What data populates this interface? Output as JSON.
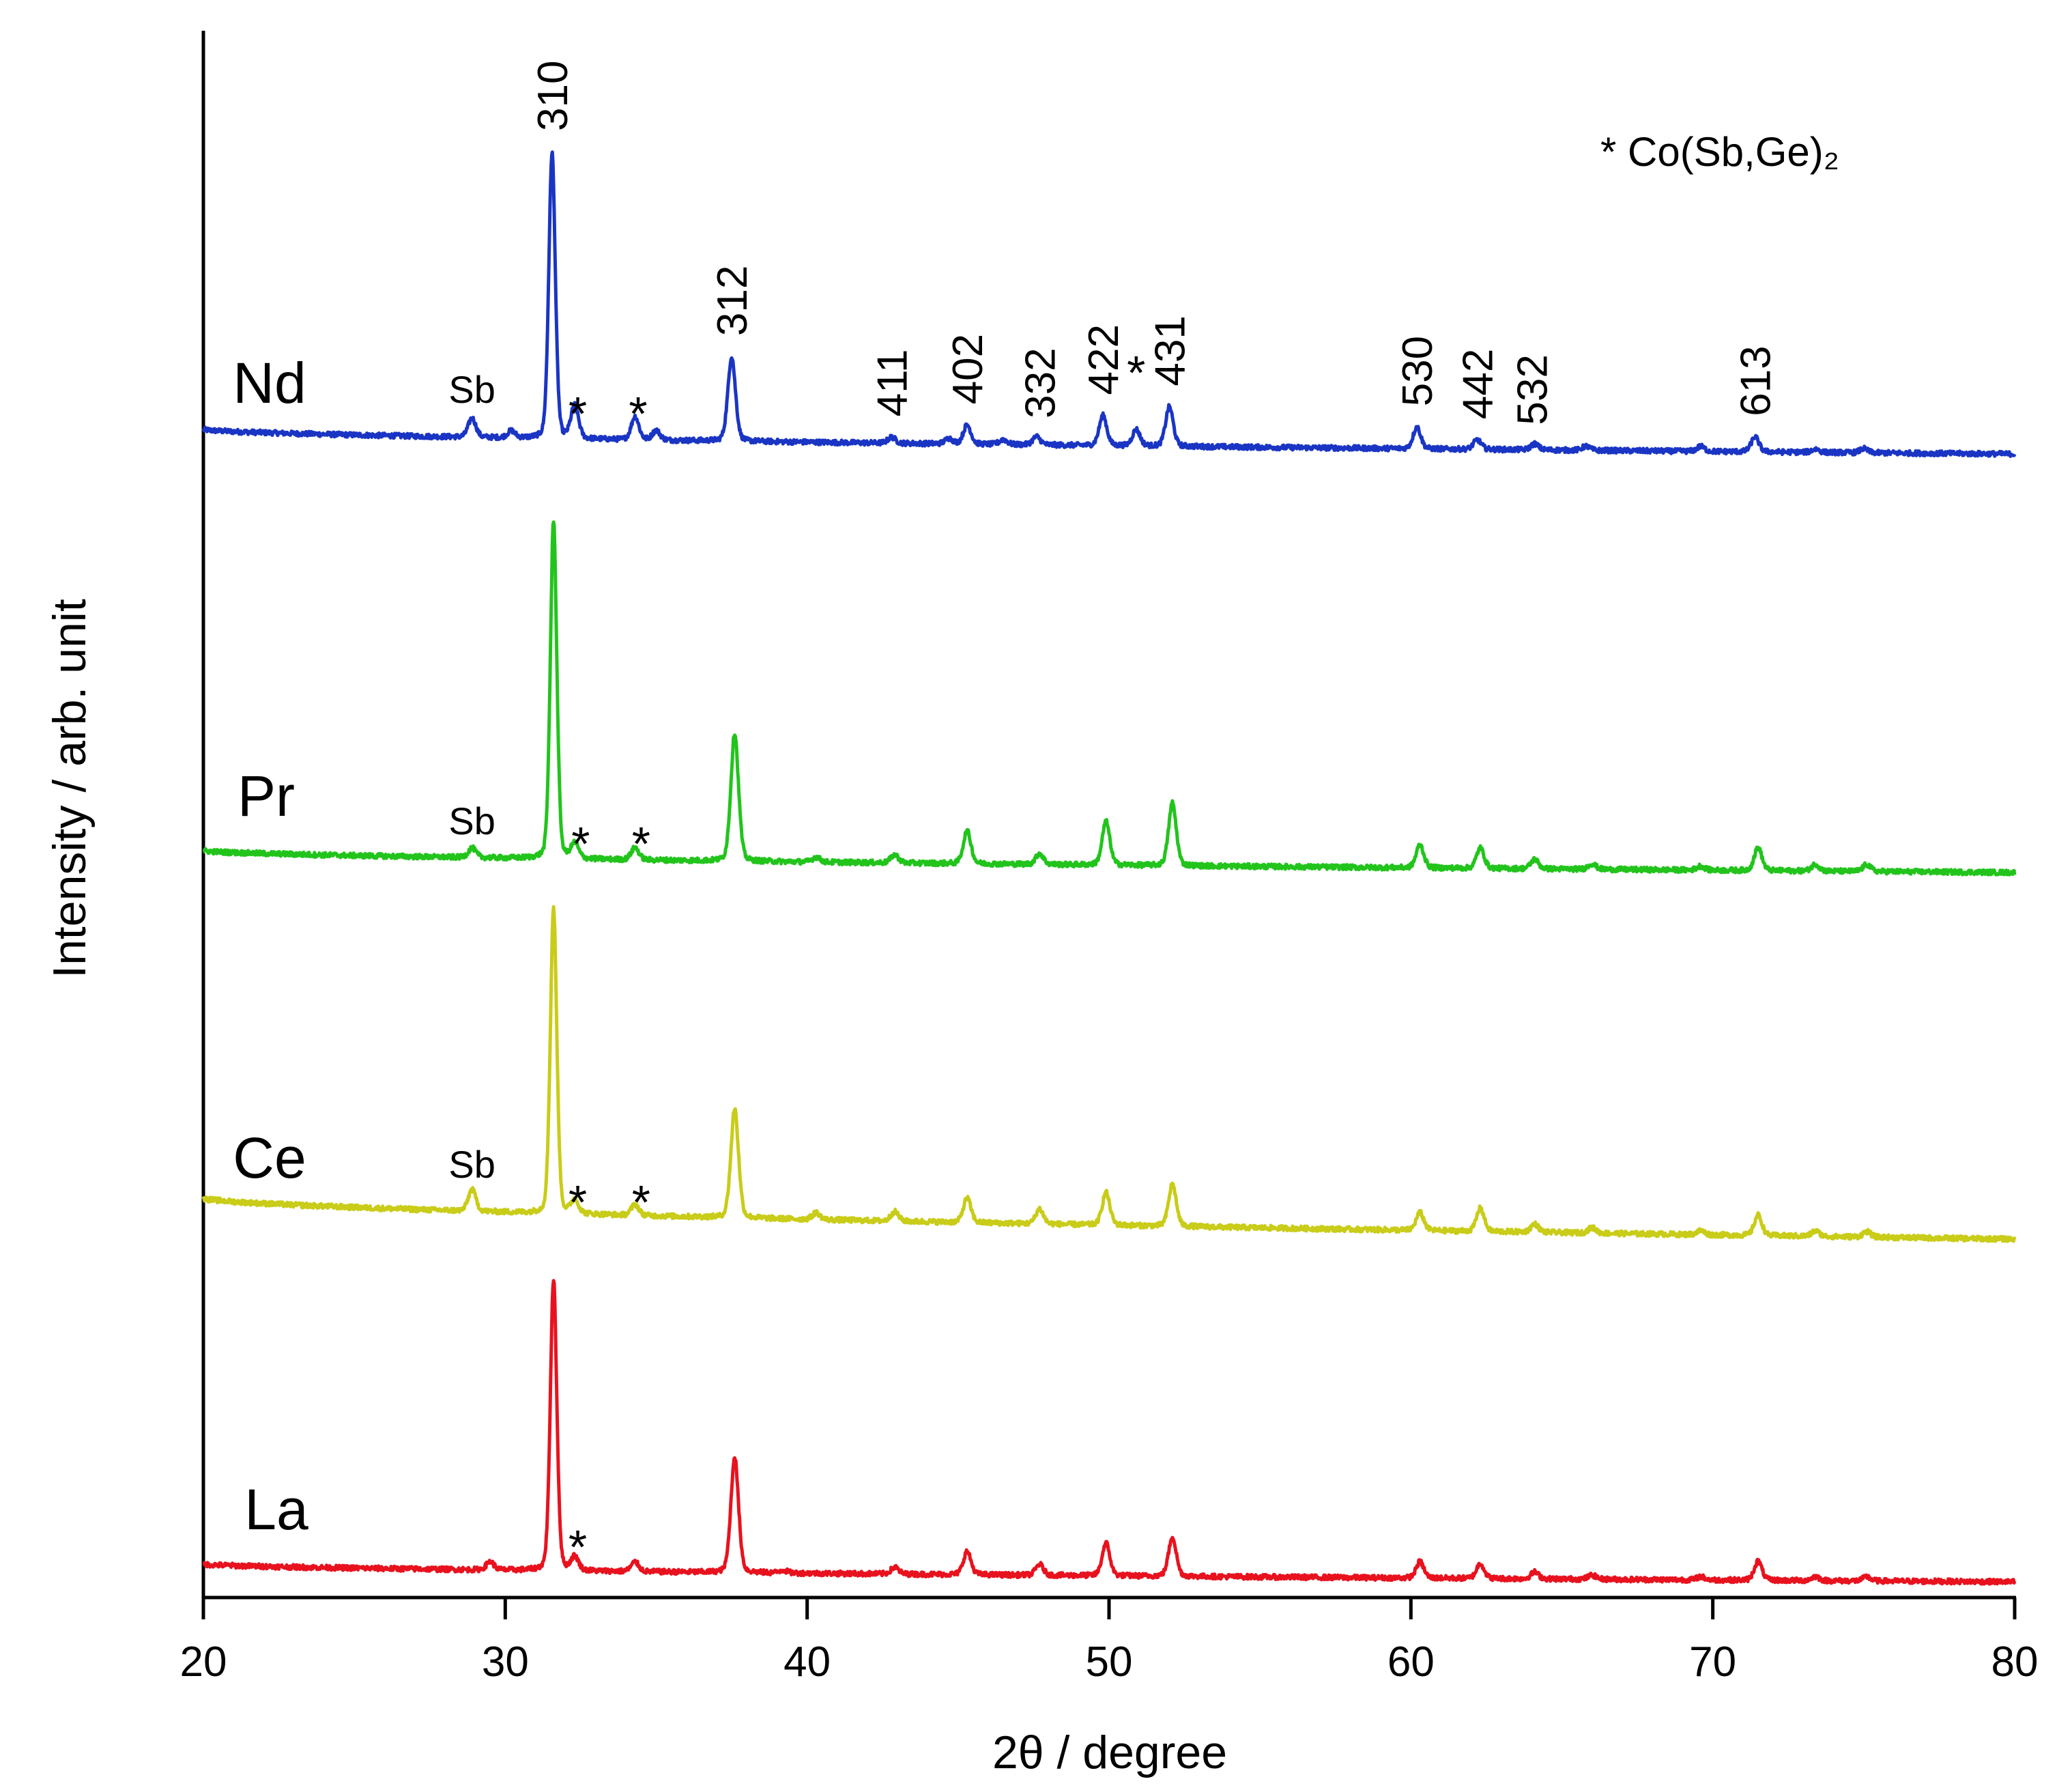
{
  "chart_data": {
    "type": "line",
    "xlabel": "2θ / degree",
    "ylabel": "Intensity / arb. unit",
    "xlim": [
      20,
      80
    ],
    "x_ticks": [
      "20",
      "30",
      "40",
      "50",
      "60",
      "70",
      "80"
    ],
    "y_ticks": "none",
    "note": "* Co(Sb,Ge)₂",
    "series": [
      {
        "name": "Nd",
        "color": "#1a35c4",
        "baseline_start": 0.9,
        "baseline_end": 0.0,
        "peaks": [
          [
            28.9,
            0.7
          ],
          [
            30.2,
            0.25
          ],
          [
            31.55,
            10.5
          ],
          [
            32.3,
            1.2
          ],
          [
            34.3,
            0.85
          ],
          [
            35.0,
            0.35
          ],
          [
            37.5,
            3.1
          ],
          [
            42.8,
            0.22
          ],
          [
            44.7,
            0.2
          ],
          [
            45.3,
            0.7
          ],
          [
            46.5,
            0.18
          ],
          [
            47.6,
            0.3
          ],
          [
            49.8,
            1.1
          ],
          [
            50.9,
            0.6
          ],
          [
            52.0,
            1.45
          ],
          [
            60.2,
            0.8
          ],
          [
            62.2,
            0.35
          ],
          [
            64.1,
            0.22
          ],
          [
            65.8,
            0.15
          ],
          [
            69.6,
            0.18
          ],
          [
            71.4,
            0.55
          ],
          [
            73.4,
            0.12
          ],
          [
            75.0,
            0.15
          ]
        ]
      },
      {
        "name": "Pr",
        "color": "#22c41c",
        "baseline_start": 0.8,
        "baseline_end": 0.0,
        "peaks": [
          [
            28.9,
            0.35
          ],
          [
            31.6,
            12.4
          ],
          [
            32.3,
            0.55
          ],
          [
            34.3,
            0.45
          ],
          [
            37.6,
            4.7
          ],
          [
            40.3,
            0.18
          ],
          [
            42.9,
            0.3
          ],
          [
            45.3,
            1.2
          ],
          [
            47.7,
            0.4
          ],
          [
            49.9,
            1.6
          ],
          [
            52.1,
            2.3
          ],
          [
            60.3,
            0.85
          ],
          [
            62.3,
            0.75
          ],
          [
            64.1,
            0.35
          ],
          [
            66.0,
            0.2
          ],
          [
            69.6,
            0.15
          ],
          [
            71.5,
            0.85
          ],
          [
            73.4,
            0.25
          ],
          [
            75.1,
            0.25
          ]
        ]
      },
      {
        "name": "Ce",
        "color": "#c9cc18",
        "baseline_start": 1.5,
        "baseline_end": 0.0,
        "peaks": [
          [
            28.9,
            0.8
          ],
          [
            31.6,
            11.2
          ],
          [
            32.3,
            0.5
          ],
          [
            34.3,
            0.4
          ],
          [
            37.6,
            4.0
          ],
          [
            40.3,
            0.25
          ],
          [
            42.9,
            0.35
          ],
          [
            45.3,
            0.9
          ],
          [
            47.7,
            0.55
          ],
          [
            49.9,
            1.2
          ],
          [
            52.1,
            1.55
          ],
          [
            60.3,
            0.65
          ],
          [
            62.3,
            0.85
          ],
          [
            64.1,
            0.3
          ],
          [
            66.0,
            0.2
          ],
          [
            69.6,
            0.15
          ],
          [
            71.5,
            0.75
          ],
          [
            73.4,
            0.2
          ],
          [
            75.1,
            0.2
          ]
        ]
      },
      {
        "name": "La",
        "color": "#e8121e",
        "baseline_start": 0.65,
        "baseline_end": 0.0,
        "peaks": [
          [
            29.5,
            0.3
          ],
          [
            31.6,
            10.7
          ],
          [
            32.3,
            0.5
          ],
          [
            34.3,
            0.35
          ],
          [
            37.6,
            4.25
          ],
          [
            39.2,
            0.1
          ],
          [
            42.9,
            0.25
          ],
          [
            45.3,
            0.85
          ],
          [
            47.7,
            0.4
          ],
          [
            49.9,
            1.2
          ],
          [
            52.1,
            1.45
          ],
          [
            60.3,
            0.6
          ],
          [
            62.3,
            0.55
          ],
          [
            64.1,
            0.25
          ],
          [
            66.0,
            0.15
          ],
          [
            69.6,
            0.12
          ],
          [
            71.5,
            0.7
          ],
          [
            73.4,
            0.15
          ],
          [
            75.1,
            0.15
          ]
        ]
      }
    ],
    "series_labels": [
      "Nd",
      "Pr",
      "Ce",
      "La"
    ],
    "hkl_labels": [
      {
        "text": "310",
        "x": 31.55
      },
      {
        "text": "312",
        "x": 37.5
      },
      {
        "text": "411",
        "x": 42.8
      },
      {
        "text": "402",
        "x": 45.3
      },
      {
        "text": "332",
        "x": 47.7
      },
      {
        "text": "422",
        "x": 49.8
      },
      {
        "text": "431",
        "x": 52.0
      },
      {
        "text": "530",
        "x": 60.2
      },
      {
        "text": "442",
        "x": 62.2
      },
      {
        "text": "532",
        "x": 64.0
      },
      {
        "text": "613",
        "x": 71.4
      }
    ],
    "impurity_labels": {
      "Sb": [
        {
          "series": "Nd",
          "x": 28.9
        },
        {
          "series": "Pr",
          "x": 28.9
        },
        {
          "series": "Ce",
          "x": 28.9
        }
      ],
      "star": [
        {
          "series": "Nd",
          "x": 32.4
        },
        {
          "series": "Nd",
          "x": 34.4
        },
        {
          "series": "Nd",
          "x": 50.9
        },
        {
          "series": "Pr",
          "x": 32.5
        },
        {
          "series": "Pr",
          "x": 34.5
        },
        {
          "series": "Ce",
          "x": 32.4
        },
        {
          "series": "Ce",
          "x": 34.5
        },
        {
          "series": "La",
          "x": 32.4
        }
      ],
      "sb_text": "Sb",
      "star_text": "*"
    }
  }
}
